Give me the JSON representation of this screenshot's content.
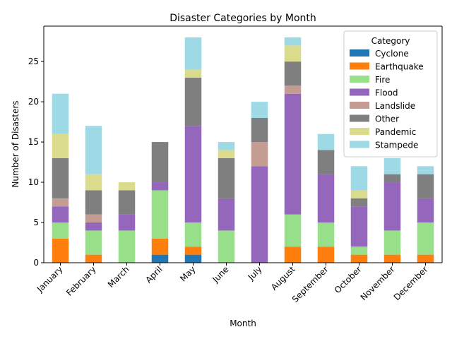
{
  "chart_data": {
    "type": "bar",
    "stacked": true,
    "title": "Disaster Categories by Month",
    "xlabel": "Month",
    "ylabel": "Number of Disasters",
    "ylim": [
      0,
      29.4
    ],
    "yticks": [
      0,
      5,
      10,
      15,
      20,
      25
    ],
    "legend_title": "Category",
    "legend_position": "top-right",
    "categories": [
      "January",
      "February",
      "March",
      "April",
      "May",
      "June",
      "July",
      "August",
      "September",
      "October",
      "November",
      "December"
    ],
    "series": [
      {
        "name": "Cyclone",
        "color": "#1f77b4",
        "values": [
          0,
          0,
          0,
          1,
          1,
          0,
          0,
          0,
          0,
          0,
          0,
          0
        ]
      },
      {
        "name": "Earthquake",
        "color": "#ff7f0e",
        "values": [
          3,
          1,
          0,
          2,
          1,
          0,
          0,
          2,
          2,
          1,
          1,
          1
        ]
      },
      {
        "name": "Fire",
        "color": "#98df8a",
        "values": [
          2,
          3,
          4,
          6,
          3,
          4,
          0,
          4,
          3,
          1,
          3,
          4
        ]
      },
      {
        "name": "Flood",
        "color": "#9467bd",
        "values": [
          2,
          1,
          2,
          1,
          12,
          4,
          12,
          15,
          6,
          5,
          6,
          3
        ]
      },
      {
        "name": "Landslide",
        "color": "#c49c94",
        "values": [
          1,
          1,
          0,
          0,
          0,
          0,
          3,
          1,
          0,
          0,
          0,
          0
        ]
      },
      {
        "name": "Other",
        "color": "#7f7f7f",
        "values": [
          5,
          3,
          3,
          5,
          6,
          5,
          3,
          3,
          3,
          1,
          1,
          3
        ]
      },
      {
        "name": "Pandemic",
        "color": "#dbdb8d",
        "values": [
          3,
          2,
          1,
          0,
          1,
          1,
          0,
          2,
          0,
          1,
          0,
          0
        ]
      },
      {
        "name": "Stampede",
        "color": "#9edae5",
        "values": [
          5,
          6,
          0,
          0,
          4,
          1,
          2,
          1,
          2,
          3,
          2,
          1
        ]
      }
    ]
  }
}
